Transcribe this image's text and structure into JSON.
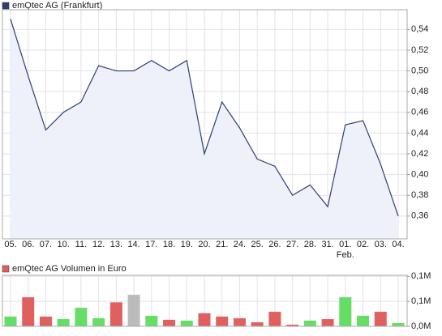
{
  "chart_data": [
    {
      "type": "area",
      "title": "emQtec AG (Frankfurt)",
      "categories": [
        "05.",
        "06.",
        "07.",
        "10.",
        "11.",
        "12.",
        "13.",
        "14.",
        "17.",
        "18.",
        "19.",
        "20.",
        "21.",
        "24.",
        "25.",
        "26.",
        "27.",
        "28.",
        "31.",
        "01.",
        "02.",
        "03.",
        "04."
      ],
      "x_sublabels": [
        null,
        null,
        null,
        null,
        null,
        null,
        null,
        null,
        null,
        null,
        null,
        null,
        null,
        null,
        null,
        null,
        null,
        null,
        null,
        "Feb.",
        null,
        null,
        null
      ],
      "series": [
        {
          "name": "emQtec AG (Frankfurt)",
          "color": "#2f3f6f",
          "fill": "#eef0fa",
          "values": [
            0.55,
            0.495,
            0.443,
            0.46,
            0.47,
            0.505,
            0.5,
            0.5,
            0.51,
            0.5,
            0.51,
            0.42,
            0.47,
            0.445,
            0.415,
            0.408,
            0.38,
            0.39,
            0.369,
            0.448,
            0.452,
            0.41,
            0.36
          ]
        }
      ],
      "ylim": [
        0.338,
        0.559
      ],
      "yticks": [
        {
          "value": 0.36,
          "label": "0,36"
        },
        {
          "value": 0.38,
          "label": "0,38"
        },
        {
          "value": 0.4,
          "label": "0,40"
        },
        {
          "value": 0.42,
          "label": "0,42"
        },
        {
          "value": 0.44,
          "label": "0,44"
        },
        {
          "value": 0.46,
          "label": "0,46"
        },
        {
          "value": 0.48,
          "label": "0,48"
        },
        {
          "value": 0.5,
          "label": "0,50"
        },
        {
          "value": 0.52,
          "label": "0,52"
        },
        {
          "value": 0.54,
          "label": "0,54"
        }
      ],
      "grid": true
    },
    {
      "type": "bar",
      "series": [
        {
          "name": "emQtec AG Volumen in Euro",
          "color": "#e06060",
          "values": [
            19400,
            58000,
            19400,
            14500,
            37000,
            16000,
            48000,
            63000,
            21000,
            13000,
            11300,
            26000,
            19400,
            16000,
            8000,
            29000,
            3200,
            11300,
            14500,
            58000,
            21000,
            29000,
            6500
          ],
          "colors": [
            "#66dd66",
            "#e06060",
            "#e06060",
            "#66dd66",
            "#66dd66",
            "#66dd66",
            "#e06060",
            "#bbbbbb",
            "#66dd66",
            "#e06060",
            "#66dd66",
            "#e06060",
            "#e06060",
            "#e06060",
            "#e06060",
            "#e06060",
            "#e06060",
            "#66dd66",
            "#e06060",
            "#66dd66",
            "#66dd66",
            "#e06060",
            "#66dd66"
          ]
        }
      ],
      "ylim": [
        0,
        102000
      ],
      "yticks": [
        {
          "value": 0,
          "label": "0,0M"
        },
        {
          "value": 50000,
          "label": "0,1M"
        },
        {
          "value": 100000,
          "label": "0,1M"
        }
      ],
      "grid": true
    }
  ]
}
